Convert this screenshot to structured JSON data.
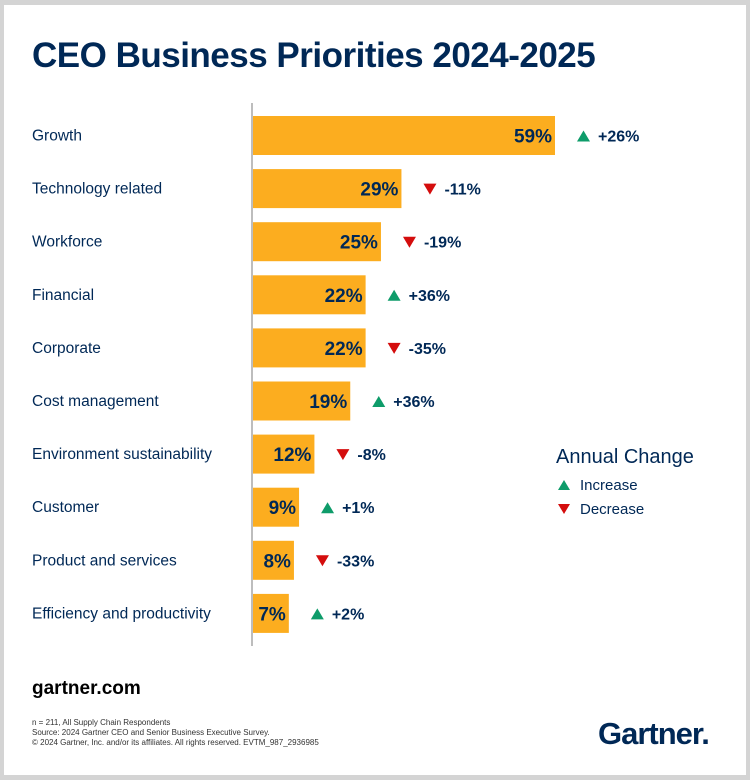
{
  "title": "CEO Business Priorities 2024-2025",
  "footer": {
    "site": "gartner.com",
    "notes": [
      "n = 211, All Supply Chain Respondents",
      "Source: 2024 Gartner CEO and Senior Business Executive Survey.",
      "© 2024 Gartner, Inc. and/or its affiliates. All rights reserved. EVTM_987_2936985"
    ],
    "logo": "Gartner."
  },
  "colors": {
    "bar": "#FCAD1F",
    "title": "#002856",
    "increase": "#0E9C6A",
    "decrease": "#D40D0D",
    "axis": "#BDBDBD"
  },
  "legend": {
    "title": "Annual Change",
    "increase_label": "Increase",
    "decrease_label": "Decrease",
    "increase_icon": "triangle-up-icon",
    "decrease_icon": "triangle-down-icon"
  },
  "chart_data": {
    "type": "bar",
    "orientation": "horizontal",
    "title": "CEO Business Priorities 2024-2025",
    "xlabel": "",
    "ylabel": "",
    "xlim": [
      0,
      60
    ],
    "grid": false,
    "legend_position": "right",
    "categories": [
      "Growth",
      "Technology related",
      "Workforce",
      "Financial",
      "Corporate",
      "Cost management",
      "Environment sustainability",
      "Customer",
      "Product and services",
      "Efficiency and productivity"
    ],
    "values": [
      59,
      29,
      25,
      22,
      22,
      19,
      12,
      9,
      8,
      7
    ],
    "value_labels": [
      "59%",
      "29%",
      "25%",
      "22%",
      "22%",
      "19%",
      "12%",
      "9%",
      "8%",
      "7%"
    ],
    "annual_change": [
      26,
      -11,
      -19,
      36,
      -35,
      36,
      -8,
      1,
      -33,
      2
    ],
    "annual_change_labels": [
      "+26%",
      "-11%",
      "-19%",
      "+36%",
      "-35%",
      "+36%",
      "-8%",
      "+1%",
      "-33%",
      "+2%"
    ]
  }
}
